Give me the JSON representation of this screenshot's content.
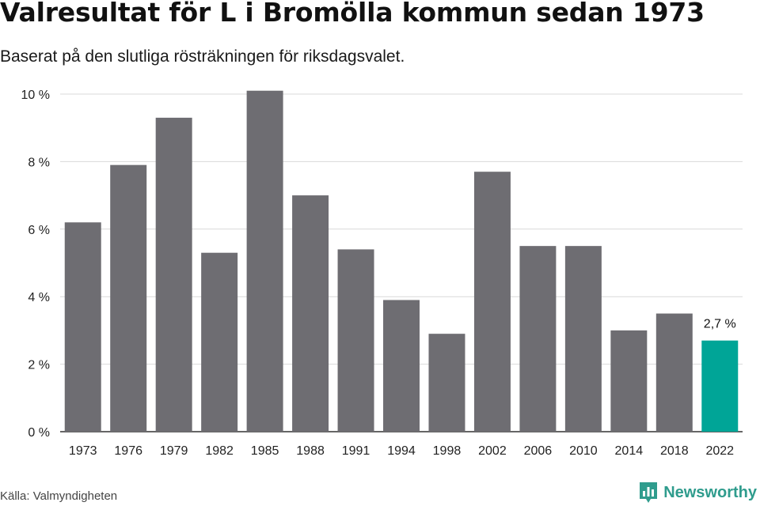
{
  "title": "Valresultat för L i Bromölla kommun sedan 1973",
  "subtitle": "Baserat på den slutliga rösträkningen för riksdagsvalet.",
  "source": "Källa: Valmyndigheten",
  "brand": {
    "name": "Newsworthy",
    "icon": "newsworthy-logo-icon",
    "color": "#2f9c8d"
  },
  "colors": {
    "bar": "#6e6d72",
    "highlight": "#00a597",
    "grid": "#d9d9d9",
    "axis": "#333333"
  },
  "chart_data": {
    "type": "bar",
    "categories": [
      "1973",
      "1976",
      "1979",
      "1982",
      "1985",
      "1988",
      "1991",
      "1994",
      "1998",
      "2002",
      "2006",
      "2010",
      "2014",
      "2018",
      "2022"
    ],
    "values": [
      6.2,
      7.9,
      9.3,
      5.3,
      10.1,
      7.0,
      5.4,
      3.9,
      2.9,
      7.7,
      5.5,
      5.5,
      3.0,
      3.5,
      2.7
    ],
    "highlight_index": 14,
    "highlight_label": "2,7 %",
    "y_ticks": [
      {
        "value": 0,
        "label": "0 %"
      },
      {
        "value": 2,
        "label": "2 %"
      },
      {
        "value": 4,
        "label": "4 %"
      },
      {
        "value": 6,
        "label": "6 %"
      },
      {
        "value": 8,
        "label": "8 %"
      },
      {
        "value": 10,
        "label": "10 %"
      }
    ],
    "ylim": [
      0,
      10
    ],
    "grid": true,
    "legend": "none"
  }
}
